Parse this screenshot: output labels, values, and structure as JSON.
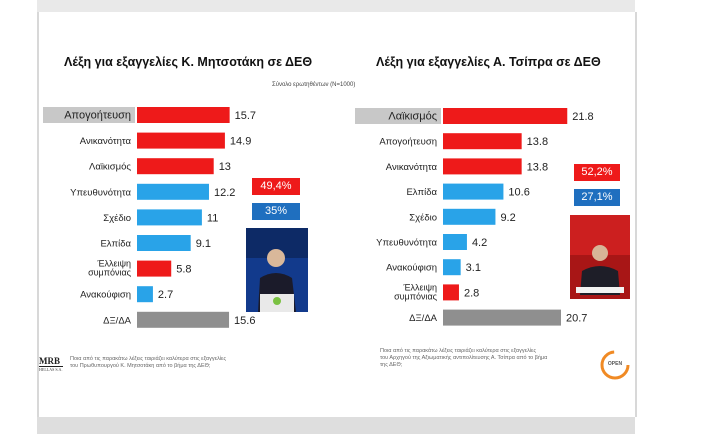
{
  "survey_note": "Σύνολο ερωτηθέντων (N=1000)",
  "colors": {
    "red": "#ee1a1a",
    "blue": "#29a3e8",
    "gray": "#8f8f8f",
    "dark_blue": "#1f6fbf"
  },
  "left_panel": {
    "title": "Λέξη για εξαγγελίες Κ. Μητσοτάκη σε ΔΕΘ",
    "badge_1": "49,4%",
    "badge_2": "35%",
    "photo": "person-speaking-photo",
    "footnote_line1": "Ποια από τις παρακάτω λέξεις ταιριάζει καλύτερα στις εξαγγελίες",
    "footnote_line2": "του Πρωθυπουργού Κ. Μητσοτάκη από το βήμα της ΔΕΘ;"
  },
  "right_panel": {
    "title": "Λέξη για εξαγγελίες Α. Τσίπρα σε ΔΕΘ",
    "badge_1": "52,2%",
    "badge_2": "27,1%",
    "photo": "person-speaking-photo",
    "footnote_line1": "Ποια από τις παρακάτω λέξεις ταιριάζει καλύτερα στις εξαγγελίες",
    "footnote_line2": "του Αρχηγού της Αξιωματικής αντιπολίτευσης Α. Τσίπρα από το βήμα",
    "footnote_line3": "της ΔΕΘ;"
  },
  "logos": {
    "mrb_top": "MRB",
    "mrb_bottom": "HELLAS S.A.",
    "open": "OPEN"
  },
  "chart_data": [
    {
      "type": "bar",
      "orientation": "horizontal",
      "title": "Λέξη για εξαγγελίες Κ. Μητσοτάκη σε ΔΕΘ",
      "categories": [
        "Απογοήτευση",
        "Ανικανότητα",
        "Λαϊκισμός",
        "Υπευθυνότητα",
        "Σχέδιο",
        "Ελπίδα",
        "Έλλειψη συμπόνιας",
        "Ανακούφιση",
        "ΔΞ/ΔΑ"
      ],
      "values": [
        15.7,
        14.9,
        13,
        12.2,
        11,
        9.1,
        5.8,
        2.7,
        15.6
      ],
      "bar_colors": [
        "red",
        "red",
        "red",
        "blue",
        "blue",
        "blue",
        "red",
        "blue",
        "gray"
      ],
      "highlighted_category": "Απογοήτευση"
    },
    {
      "type": "bar",
      "orientation": "horizontal",
      "title": "Λέξη για εξαγγελίες Α. Τσίπρα σε ΔΕΘ",
      "categories": [
        "Λαϊκισμός",
        "Απογοήτευση",
        "Ανικανότητα",
        "Ελπίδα",
        "Σχέδιο",
        "Υπευθυνότητα",
        "Ανακούφιση",
        "Έλλειψη συμπόνιας",
        "ΔΞ/ΔΑ"
      ],
      "values": [
        21.8,
        13.8,
        13.8,
        10.6,
        9.2,
        4.2,
        3.1,
        2.8,
        20.7
      ],
      "bar_colors": [
        "red",
        "red",
        "red",
        "blue",
        "blue",
        "blue",
        "blue",
        "red",
        "gray"
      ],
      "highlighted_category": "Λαϊκισμός"
    }
  ]
}
